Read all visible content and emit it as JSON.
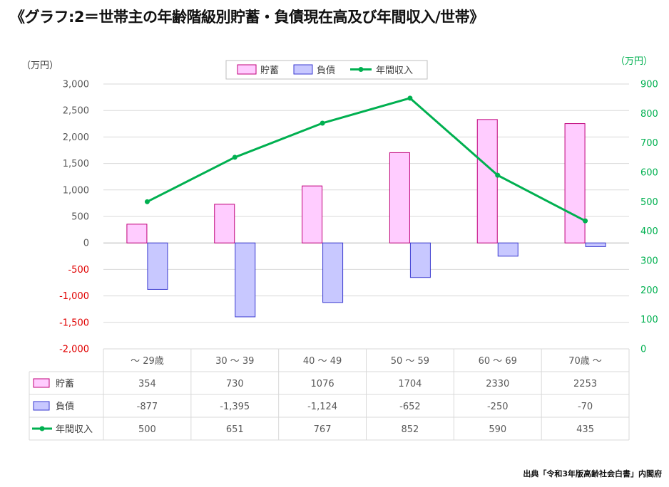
{
  "header": {
    "title": "《グラフ:2＝世帯主の年齢階級別貯蓄・負債現在高及び年間収入/世帯》"
  },
  "footer": {
    "source": "出典「令和3年版高齢社会白書」内閣府"
  },
  "chart_data": {
    "type": "bar",
    "title": "",
    "categories": [
      "～ 29歳",
      "30 ～ 39",
      "40 ～ 49",
      "50 ～ 59",
      "60 ～ 69",
      "70歳 ～"
    ],
    "series": [
      {
        "name": "貯蓄",
        "type": "bar",
        "axis": "left",
        "values": [
          354,
          730,
          1076,
          1704,
          2330,
          2253
        ],
        "labels": [
          "354",
          "730",
          "1076",
          "1704",
          "2330",
          "2253"
        ],
        "color": "#ffccff",
        "border": "#c0007a"
      },
      {
        "name": "負債",
        "type": "bar",
        "axis": "left",
        "values": [
          -877,
          -1395,
          -1124,
          -652,
          -250,
          -70
        ],
        "labels": [
          "-877",
          "-1,395",
          "-1,124",
          "-652",
          "-250",
          "-70"
        ],
        "color": "#c8c8ff",
        "border": "#3a3ad0"
      },
      {
        "name": "年間収入",
        "type": "line",
        "axis": "right",
        "values": [
          500,
          651,
          767,
          852,
          590,
          435
        ],
        "labels": [
          "500",
          "651",
          "767",
          "852",
          "590",
          "435"
        ],
        "color": "#00b050"
      }
    ],
    "y_left": {
      "unit": "（万円）",
      "min": -2000,
      "max": 3000,
      "ticks": [
        3000,
        2500,
        2000,
        1500,
        1000,
        500,
        0,
        -500,
        -1000,
        -1500,
        -2000
      ],
      "tick_labels": [
        "3,000",
        "2,500",
        "2,000",
        "1,500",
        "1,000",
        "500",
        "0",
        "-500",
        "-1,000",
        "-1,500",
        "-2,000"
      ],
      "positive_color": "#595959",
      "negative_color": "#e00000"
    },
    "y_right": {
      "unit": "（万円）",
      "min": 0,
      "max": 900,
      "ticks": [
        900,
        800,
        700,
        600,
        500,
        400,
        300,
        200,
        100,
        0
      ],
      "tick_labels": [
        "900",
        "800",
        "700",
        "600",
        "500",
        "400",
        "300",
        "200",
        "100",
        "0"
      ],
      "color": "#00b050"
    },
    "grid": true,
    "legend": "top-center",
    "data_table": true
  }
}
